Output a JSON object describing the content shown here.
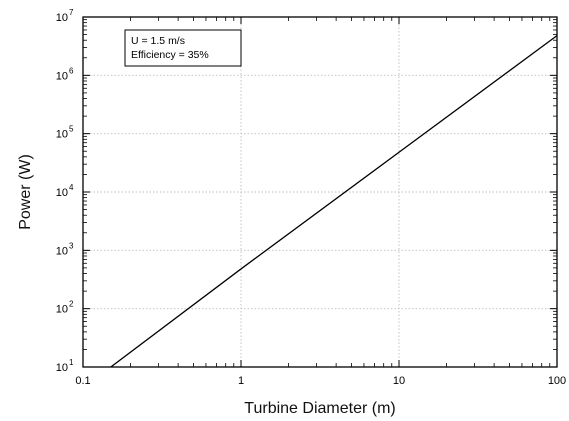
{
  "chart_data": {
    "type": "line",
    "title": "",
    "xlabel": "Turbine Diameter (m)",
    "ylabel": "Power (W)",
    "x_scale": "log",
    "y_scale": "log",
    "xlim": [
      0.1,
      100
    ],
    "ylim": [
      10,
      10000000
    ],
    "grid": true,
    "x_ticks": [
      "0.1",
      "1",
      "10",
      "100"
    ],
    "y_ticks": [
      {
        "base": "10",
        "exp": "1"
      },
      {
        "base": "10",
        "exp": "2"
      },
      {
        "base": "10",
        "exp": "3"
      },
      {
        "base": "10",
        "exp": "4"
      },
      {
        "base": "10",
        "exp": "5"
      },
      {
        "base": "10",
        "exp": "6"
      },
      {
        "base": "10",
        "exp": "7"
      }
    ],
    "annotations": [
      "U = 1.5 m/s",
      "Efficiency = 35%"
    ],
    "series": [
      {
        "values": [
          {
            "x": 0.15,
            "y": 10
          },
          {
            "x": 1,
            "y": 480
          },
          {
            "x": 10,
            "y": 48000
          },
          {
            "x": 100,
            "y": 4800000
          }
        ]
      }
    ],
    "colors": {
      "line": "#000000",
      "grid": "#bdbdbd",
      "frame": "#000000"
    }
  }
}
